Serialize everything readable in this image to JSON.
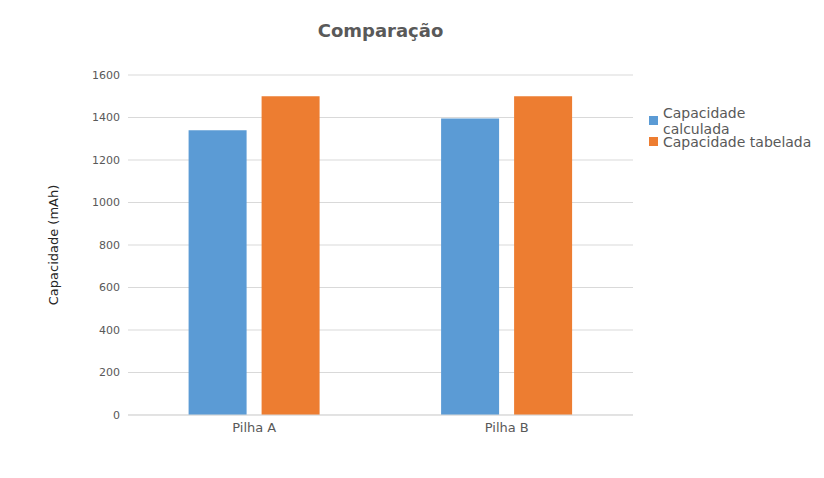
{
  "chart_data": {
    "type": "bar",
    "title": "Comparação",
    "y_label": "Capacidade (mAh)",
    "categories": [
      "Pilha A",
      "Pilha B"
    ],
    "series": [
      {
        "name": "Capacidade calculada",
        "color": "#5b9bd5",
        "values": [
          1340,
          1395
        ]
      },
      {
        "name": "Capacidade tabelada",
        "color": "#ed7d31",
        "values": [
          1500,
          1500
        ]
      }
    ],
    "ylim": [
      0,
      1600
    ],
    "yticks": [
      0,
      200,
      400,
      600,
      800,
      1000,
      1200,
      1400,
      1600
    ],
    "grid": true,
    "legend": "right"
  }
}
